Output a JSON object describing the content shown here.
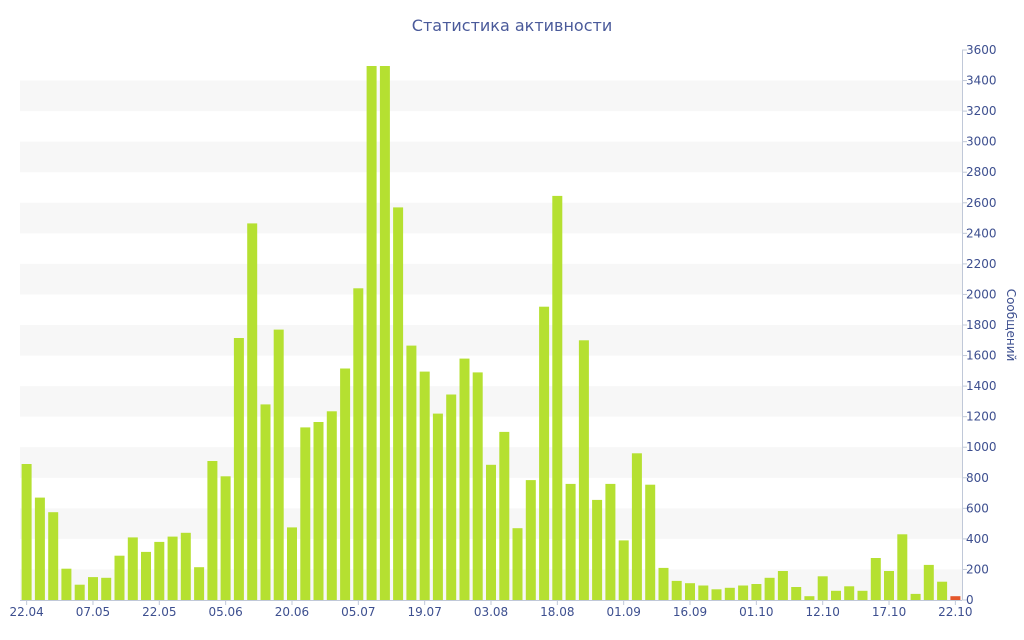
{
  "chart_data": {
    "type": "bar",
    "title": "Статистика активности",
    "ylabel": "Сообщений",
    "xlabel": "",
    "ylim": [
      0,
      3600
    ],
    "y_ticks": [
      0,
      200,
      400,
      600,
      800,
      1000,
      1200,
      1400,
      1600,
      1800,
      2000,
      2200,
      2400,
      2600,
      2800,
      3000,
      3200,
      3400,
      3600
    ],
    "y_axis_side": "right",
    "grid": "alternating horizontal bands",
    "x_ticks": [
      {
        "label": "22.04",
        "index": 0
      },
      {
        "label": "07.05",
        "index": 5
      },
      {
        "label": "22.05",
        "index": 10
      },
      {
        "label": "05.06",
        "index": 15
      },
      {
        "label": "20.06",
        "index": 20
      },
      {
        "label": "05.07",
        "index": 25
      },
      {
        "label": "19.07",
        "index": 30
      },
      {
        "label": "03.08",
        "index": 35
      },
      {
        "label": "18.08",
        "index": 40
      },
      {
        "label": "01.09",
        "index": 45
      },
      {
        "label": "16.09",
        "index": 50
      },
      {
        "label": "01.10",
        "index": 55
      },
      {
        "label": "12.10",
        "index": 60
      },
      {
        "label": "17.10",
        "index": 65
      },
      {
        "label": "22.10",
        "index": 70
      }
    ],
    "values": [
      890,
      670,
      575,
      205,
      100,
      150,
      145,
      290,
      410,
      315,
      380,
      415,
      440,
      215,
      910,
      810,
      1715,
      2465,
      1280,
      1770,
      475,
      1130,
      1165,
      1235,
      1515,
      2040,
      3495,
      3495,
      2570,
      1665,
      1495,
      1220,
      1345,
      1580,
      1490,
      885,
      1100,
      470,
      785,
      1920,
      2645,
      760,
      1700,
      655,
      760,
      390,
      960,
      755,
      210,
      125,
      110,
      95,
      70,
      80,
      95,
      105,
      145,
      190,
      85,
      25,
      155,
      60,
      90,
      60,
      275,
      190,
      430,
      40,
      230,
      120,
      25
    ],
    "highlight_index": 70,
    "colors": {
      "bar": "#b5e031",
      "highlight_bar": "#e5572b",
      "band": "#f7f7f7",
      "axis_text": "#3d4f8f",
      "title_text": "#4a5a9a"
    }
  }
}
